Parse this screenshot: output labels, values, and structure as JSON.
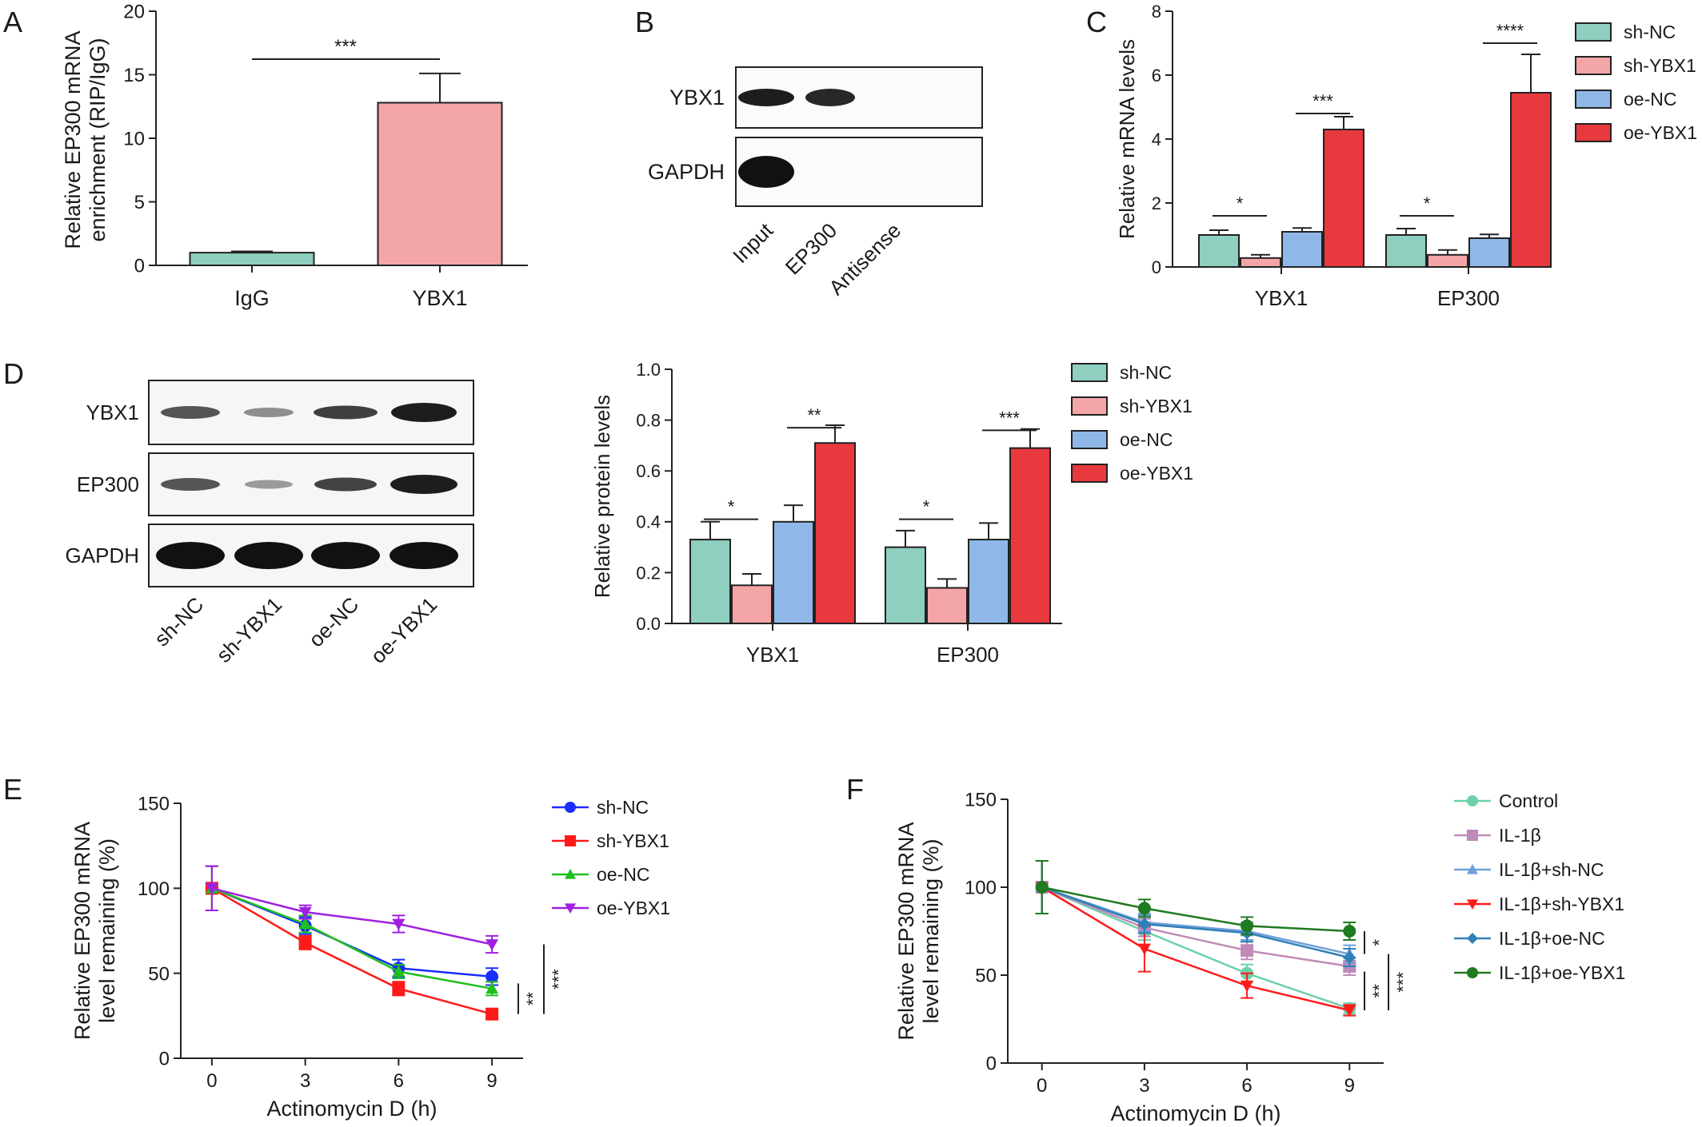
{
  "panels": {
    "A": {
      "letter": "A"
    },
    "B": {
      "letter": "B"
    },
    "C": {
      "letter": "C"
    },
    "D": {
      "letter": "D"
    },
    "E": {
      "letter": "E"
    },
    "F": {
      "letter": "F"
    }
  },
  "colors": {
    "sh-NC": "#8fcfbf",
    "sh-YBX1": "#f4a5a8",
    "oe-NC": "#8fb8e8",
    "oe-YBX1": "#e8393e",
    "IgG": "#8fcfbf",
    "YBX1": "#f4a5a8",
    "Control": "#6fd0a8",
    "IL-1β": "#c08ab8",
    "IL-1β+sh-NC": "#6f9fd8",
    "IL-1β+sh-YBX1": "#ff1a1a",
    "IL-1β+oe-NC": "#2f80b8",
    "IL-1β+oe-YBX1": "#207a20",
    "E_sh-NC": "#1a2cff",
    "E_sh-YBX1": "#ff1a1a",
    "E_oe-NC": "#1fbf1f",
    "E_oe-YBX1": "#a020e0"
  },
  "blots": {
    "B": {
      "rows": [
        "YBX1",
        "GAPDH"
      ],
      "lanes": [
        "Input",
        "EP300",
        "Antisense"
      ]
    },
    "D": {
      "rows": [
        "YBX1",
        "EP300",
        "GAPDH"
      ],
      "lanes": [
        "sh-NC",
        "sh-YBX1",
        "oe-NC",
        "oe-YBX1"
      ]
    }
  },
  "chart_data": [
    {
      "panel": "A",
      "type": "bar",
      "ylabel": "Relative EP300 mRNA enrichment (RIP/IgG)",
      "ylim": [
        0,
        20
      ],
      "yticks": [
        0,
        5,
        10,
        15,
        20
      ],
      "categories": [
        "IgG",
        "YBX1"
      ],
      "values": [
        1.0,
        12.8
      ],
      "errors": [
        0.1,
        2.3
      ],
      "significance": [
        {
          "between": [
            "IgG",
            "YBX1"
          ],
          "label": "***"
        }
      ]
    },
    {
      "panel": "C",
      "type": "bar",
      "ylabel": "Relative mRNA levels",
      "ylim": [
        0,
        8
      ],
      "yticks": [
        0,
        2,
        4,
        6,
        8
      ],
      "categories": [
        "YBX1",
        "EP300"
      ],
      "legend_position": "top-right",
      "series": [
        {
          "name": "sh-NC",
          "values": [
            1.0,
            1.0
          ],
          "errors": [
            0.15,
            0.2
          ]
        },
        {
          "name": "sh-YBX1",
          "values": [
            0.28,
            0.38
          ],
          "errors": [
            0.1,
            0.15
          ]
        },
        {
          "name": "oe-NC",
          "values": [
            1.1,
            0.9
          ],
          "errors": [
            0.12,
            0.12
          ]
        },
        {
          "name": "oe-YBX1",
          "values": [
            4.3,
            5.45
          ],
          "errors": [
            0.4,
            1.2
          ]
        }
      ],
      "significance": [
        {
          "category": "YBX1",
          "between": [
            "sh-NC",
            "sh-YBX1"
          ],
          "label": "*"
        },
        {
          "category": "YBX1",
          "between": [
            "oe-NC",
            "oe-YBX1"
          ],
          "label": "***"
        },
        {
          "category": "EP300",
          "between": [
            "sh-NC",
            "sh-YBX1"
          ],
          "label": "*"
        },
        {
          "category": "EP300",
          "between": [
            "oe-NC",
            "oe-YBX1"
          ],
          "label": "****"
        }
      ]
    },
    {
      "panel": "D",
      "type": "bar",
      "ylabel": "Relative protein levels",
      "ylim": [
        0,
        1.0
      ],
      "yticks": [
        "0.0",
        "0.2",
        "0.4",
        "0.6",
        "0.8",
        "1.0"
      ],
      "categories": [
        "YBX1",
        "EP300"
      ],
      "legend_position": "top-right",
      "series": [
        {
          "name": "sh-NC",
          "values": [
            0.33,
            0.3
          ],
          "errors": [
            0.07,
            0.065
          ]
        },
        {
          "name": "sh-YBX1",
          "values": [
            0.15,
            0.14
          ],
          "errors": [
            0.045,
            0.035
          ]
        },
        {
          "name": "oe-NC",
          "values": [
            0.4,
            0.33
          ],
          "errors": [
            0.065,
            0.065
          ]
        },
        {
          "name": "oe-YBX1",
          "values": [
            0.71,
            0.69
          ],
          "errors": [
            0.07,
            0.075
          ]
        }
      ],
      "significance": [
        {
          "category": "YBX1",
          "between": [
            "sh-NC",
            "sh-YBX1"
          ],
          "label": "*"
        },
        {
          "category": "YBX1",
          "between": [
            "oe-NC",
            "oe-YBX1"
          ],
          "label": "**"
        },
        {
          "category": "EP300",
          "between": [
            "sh-NC",
            "sh-YBX1"
          ],
          "label": "*"
        },
        {
          "category": "EP300",
          "between": [
            "oe-NC",
            "oe-YBX1"
          ],
          "label": "***"
        }
      ]
    },
    {
      "panel": "E",
      "type": "line",
      "xlabel": "Actinomycin D (h)",
      "ylabel": "Relative EP300 mRNA level remaining (%)",
      "x": [
        0,
        3,
        6,
        9
      ],
      "xlim": [
        -1,
        10
      ],
      "ylim": [
        0,
        150
      ],
      "yticks": [
        0,
        50,
        100,
        150
      ],
      "legend_position": "top-right",
      "series": [
        {
          "name": "sh-NC",
          "values": [
            100,
            78,
            53,
            48
          ],
          "errors": [
            13,
            5,
            5,
            5
          ],
          "marker": "circle"
        },
        {
          "name": "sh-YBX1",
          "values": [
            100,
            68,
            41,
            26
          ],
          "errors": [
            13,
            4,
            4,
            3
          ],
          "marker": "square"
        },
        {
          "name": "oe-NC",
          "values": [
            100,
            79,
            51,
            41
          ],
          "errors": [
            13,
            5,
            4,
            4
          ],
          "marker": "triangle-up"
        },
        {
          "name": "oe-YBX1",
          "values": [
            100,
            86,
            79,
            67
          ],
          "errors": [
            13,
            4,
            5,
            5
          ],
          "marker": "triangle-down"
        }
      ],
      "significance": [
        {
          "label": "**"
        },
        {
          "label": "***"
        }
      ]
    },
    {
      "panel": "F",
      "type": "line",
      "xlabel": "Actinomycin D (h)",
      "ylabel": "Relative EP300 mRNA level remaining (%)",
      "x": [
        0,
        3,
        6,
        9
      ],
      "xlim": [
        -1,
        10
      ],
      "ylim": [
        0,
        150
      ],
      "yticks": [
        0,
        50,
        100,
        150
      ],
      "legend_position": "top-right",
      "series": [
        {
          "name": "Control",
          "values": [
            100,
            75,
            51,
            31
          ],
          "errors": [
            15,
            5,
            5,
            3
          ],
          "marker": "circle"
        },
        {
          "name": "IL-1β",
          "values": [
            100,
            77,
            64,
            55
          ],
          "errors": [
            15,
            5,
            5,
            5
          ],
          "marker": "square"
        },
        {
          "name": "IL-1β+sh-NC",
          "values": [
            100,
            80,
            75,
            62
          ],
          "errors": [
            15,
            5,
            5,
            5
          ],
          "marker": "triangle-up"
        },
        {
          "name": "IL-1β+sh-YBX1",
          "values": [
            100,
            65,
            44,
            30
          ],
          "errors": [
            15,
            13,
            7,
            3
          ],
          "marker": "triangle-down"
        },
        {
          "name": "IL-1β+oe-NC",
          "values": [
            100,
            79,
            74,
            60
          ],
          "errors": [
            15,
            5,
            5,
            5
          ],
          "marker": "diamond"
        },
        {
          "name": "IL-1β+oe-YBX1",
          "values": [
            100,
            88,
            78,
            75
          ],
          "errors": [
            15,
            5,
            5,
            5
          ],
          "marker": "circle"
        }
      ],
      "significance": [
        {
          "label": "*"
        },
        {
          "label": "**"
        },
        {
          "label": "***"
        }
      ]
    }
  ]
}
